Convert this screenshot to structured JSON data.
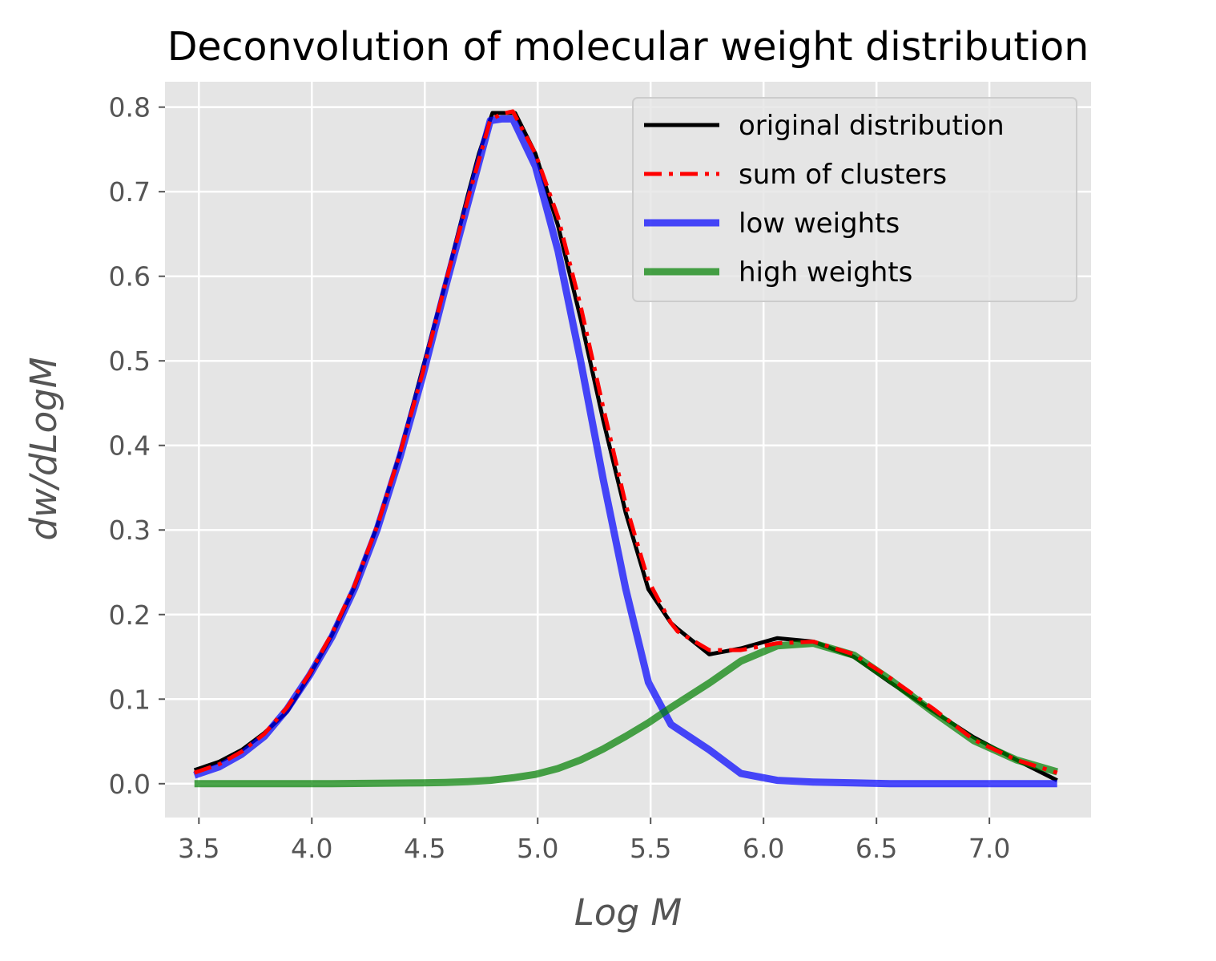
{
  "chart_data": {
    "type": "line",
    "title": "Deconvolution of molecular weight distribution",
    "xlabel": "Log M",
    "ylabel": "dw/dLogM",
    "xlim": [
      3.35,
      7.45
    ],
    "ylim": [
      -0.04,
      0.83
    ],
    "xticks": [
      3.5,
      4.0,
      4.5,
      5.0,
      5.5,
      6.0,
      6.5,
      7.0
    ],
    "xtick_labels": [
      "3.5",
      "4.0",
      "4.5",
      "5.0",
      "5.5",
      "6.0",
      "6.5",
      "7.0"
    ],
    "yticks": [
      0.0,
      0.1,
      0.2,
      0.3,
      0.4,
      0.5,
      0.6,
      0.7,
      0.8
    ],
    "ytick_labels": [
      "0.0",
      "0.1",
      "0.2",
      "0.3",
      "0.4",
      "0.5",
      "0.6",
      "0.7",
      "0.8"
    ],
    "grid": true,
    "legend_position": "top-right",
    "background": "#e5e5e5",
    "series": [
      {
        "name": "original distribution",
        "color": "#000000",
        "style": "solid",
        "x": [
          3.48,
          3.59,
          3.69,
          3.79,
          3.89,
          3.99,
          4.09,
          4.19,
          4.29,
          4.39,
          4.49,
          4.59,
          4.69,
          4.74,
          4.8,
          4.9,
          4.99,
          5.09,
          5.19,
          5.29,
          5.39,
          5.49,
          5.59,
          5.62,
          5.76,
          5.9,
          6.06,
          6.22,
          6.4,
          6.56,
          6.75,
          6.93,
          7.12,
          7.3
        ],
        "y": [
          0.016,
          0.026,
          0.04,
          0.06,
          0.085,
          0.128,
          0.176,
          0.233,
          0.305,
          0.39,
          0.49,
          0.59,
          0.695,
          0.745,
          0.793,
          0.793,
          0.745,
          0.66,
          0.55,
          0.43,
          0.32,
          0.23,
          0.19,
          0.183,
          0.153,
          0.16,
          0.172,
          0.168,
          0.15,
          0.12,
          0.086,
          0.055,
          0.028,
          0.004
        ]
      },
      {
        "name": "sum of clusters",
        "color": "#ff0000",
        "style": "dashdot",
        "x": [
          3.48,
          3.59,
          3.69,
          3.79,
          3.89,
          3.99,
          4.09,
          4.19,
          4.29,
          4.39,
          4.49,
          4.59,
          4.69,
          4.79,
          4.84,
          4.89,
          4.99,
          5.09,
          5.19,
          5.29,
          5.39,
          5.49,
          5.59,
          5.62,
          5.76,
          5.9,
          6.06,
          6.22,
          6.4,
          6.56,
          6.75,
          6.93,
          7.12,
          7.3
        ],
        "y": [
          0.013,
          0.023,
          0.038,
          0.059,
          0.09,
          0.13,
          0.178,
          0.235,
          0.305,
          0.39,
          0.485,
          0.59,
          0.69,
          0.785,
          0.792,
          0.795,
          0.745,
          0.67,
          0.565,
          0.445,
          0.33,
          0.24,
          0.19,
          0.18,
          0.158,
          0.158,
          0.166,
          0.168,
          0.153,
          0.125,
          0.089,
          0.052,
          0.028,
          0.013
        ]
      },
      {
        "name": "low weights",
        "color": "#0000ff",
        "style": "solid",
        "x": [
          3.48,
          3.59,
          3.69,
          3.79,
          3.89,
          3.99,
          4.09,
          4.19,
          4.29,
          4.39,
          4.49,
          4.59,
          4.69,
          4.79,
          4.84,
          4.89,
          4.99,
          5.09,
          5.19,
          5.29,
          5.39,
          5.49,
          5.59,
          5.76,
          5.9,
          6.06,
          6.22,
          6.4,
          6.56,
          6.75,
          6.93,
          7.12,
          7.3
        ],
        "y": [
          0.01,
          0.02,
          0.035,
          0.056,
          0.088,
          0.128,
          0.174,
          0.231,
          0.301,
          0.386,
          0.481,
          0.585,
          0.685,
          0.784,
          0.786,
          0.786,
          0.73,
          0.63,
          0.5,
          0.36,
          0.23,
          0.12,
          0.07,
          0.04,
          0.012,
          0.004,
          0.002,
          0.001,
          0.0,
          0.0,
          0.0,
          0.0,
          0.0
        ]
      },
      {
        "name": "high weights",
        "color": "#008000",
        "style": "solid",
        "x": [
          3.48,
          3.69,
          3.89,
          4.09,
          4.29,
          4.49,
          4.59,
          4.69,
          4.79,
          4.89,
          4.99,
          5.09,
          5.19,
          5.29,
          5.39,
          5.49,
          5.59,
          5.76,
          5.9,
          6.06,
          6.22,
          6.4,
          6.56,
          6.75,
          6.93,
          7.12,
          7.3
        ],
        "y": [
          0.0,
          0.0,
          0.0,
          0.0,
          0.0005,
          0.001,
          0.0015,
          0.0025,
          0.004,
          0.007,
          0.011,
          0.018,
          0.028,
          0.041,
          0.056,
          0.072,
          0.09,
          0.119,
          0.145,
          0.163,
          0.166,
          0.152,
          0.123,
          0.085,
          0.051,
          0.028,
          0.014
        ]
      }
    ]
  }
}
